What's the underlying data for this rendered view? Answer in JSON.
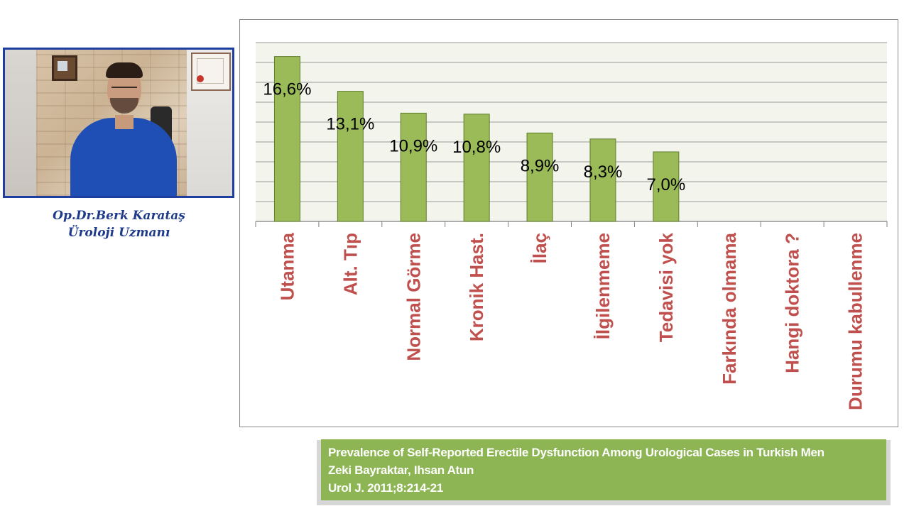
{
  "presenter": {
    "name": "Op.Dr.Berk Karataş",
    "title": "Üroloji Uzmanı"
  },
  "chart_data": {
    "type": "bar",
    "title": "",
    "xlabel": "",
    "ylabel": "",
    "categories": [
      "Utanma",
      "Alt. Tıp",
      "Normal Görme",
      "Kronik Hast.",
      "İlaç",
      "İlgilenmeme",
      "Tedavisi yok",
      "Farkında olmama",
      "Hangi doktora ?",
      "Durumu kabullenme"
    ],
    "values": [
      16.6,
      13.1,
      10.9,
      10.8,
      8.9,
      8.3,
      7.0,
      null,
      null,
      null
    ],
    "data_labels": [
      "16,6%",
      "13,1%",
      "10,9%",
      "10,8%",
      "8,9%",
      "8,3%",
      "7,0%",
      "",
      "",
      ""
    ],
    "ylim": [
      0,
      18
    ],
    "grid": true,
    "legend": "none",
    "colors": {
      "bar": "#9bbb59",
      "bar_edge": "#5e7d2a",
      "plot_bg": "#f3f5ec",
      "grid": "#9a9a9a",
      "category_label": "#c0504d"
    }
  },
  "citation": {
    "line1": "Prevalence of Self-Reported Erectile Dysfunction Among Urological Cases in Turkish Men",
    "line2": "Zeki Bayraktar, Ihsan Atun",
    "line3": "Urol J. 2011;8:214-21"
  }
}
